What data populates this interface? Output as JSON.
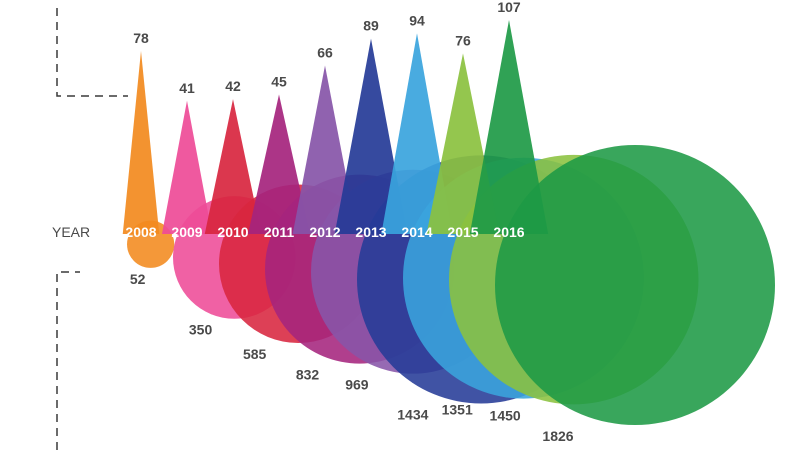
{
  "chart_data": {
    "type": "area",
    "axis_label": "YEAR",
    "categories": [
      "2008",
      "2009",
      "2010",
      "2011",
      "2012",
      "2013",
      "2014",
      "2015",
      "2016"
    ],
    "peak_values": [
      78,
      41,
      42,
      45,
      66,
      89,
      94,
      76,
      107
    ],
    "base_values": [
      52,
      350,
      585,
      832,
      969,
      1434,
      1351,
      1450,
      1826
    ],
    "colors": [
      "#f28a1e",
      "#ee4b97",
      "#d8263f",
      "#a5247d",
      "#8755a8",
      "#253b97",
      "#3aa4dd",
      "#8bc13f",
      "#1e9a46"
    ]
  }
}
